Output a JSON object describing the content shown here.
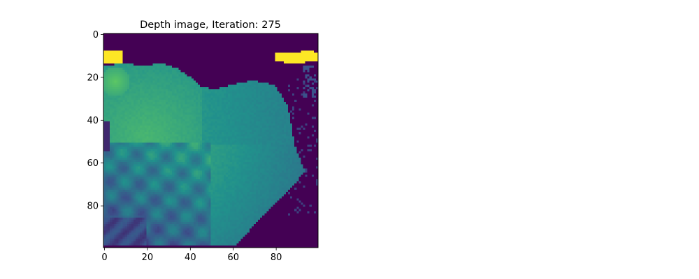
{
  "chart_data": {
    "type": "heatmap",
    "title": "Depth image, Iteration: 275",
    "xlabel": "",
    "ylabel": "",
    "image_shape": [
      100,
      100
    ],
    "xlim": [
      -0.5,
      99.5
    ],
    "ylim": [
      99.5,
      -0.5
    ],
    "xticks": [
      0,
      20,
      40,
      60,
      80
    ],
    "yticks": [
      0,
      20,
      40,
      60,
      80
    ],
    "colormap": "viridis",
    "grid": false,
    "colors": {
      "background": "#440154",
      "low": "#472d7b",
      "mid": "#2c728e",
      "high": "#35b779",
      "peak": "#fde725"
    },
    "regions": [
      {
        "name": "background",
        "value": 0.0
      },
      {
        "name": "main-blob",
        "value_range": [
          0.45,
          0.7
        ]
      },
      {
        "name": "lower-left-stripes",
        "value_range": [
          0.15,
          0.45
        ]
      },
      {
        "name": "upper-left-hotspot",
        "center": [
          4,
          22
        ],
        "value": 0.75
      },
      {
        "name": "saturated-top-left",
        "rows": [
          8,
          14
        ],
        "cols": [
          0,
          9
        ],
        "value": 1.0
      },
      {
        "name": "saturated-top-right",
        "rows": [
          8,
          14
        ],
        "cols": [
          80,
          99
        ],
        "value": 1.0
      }
    ]
  }
}
